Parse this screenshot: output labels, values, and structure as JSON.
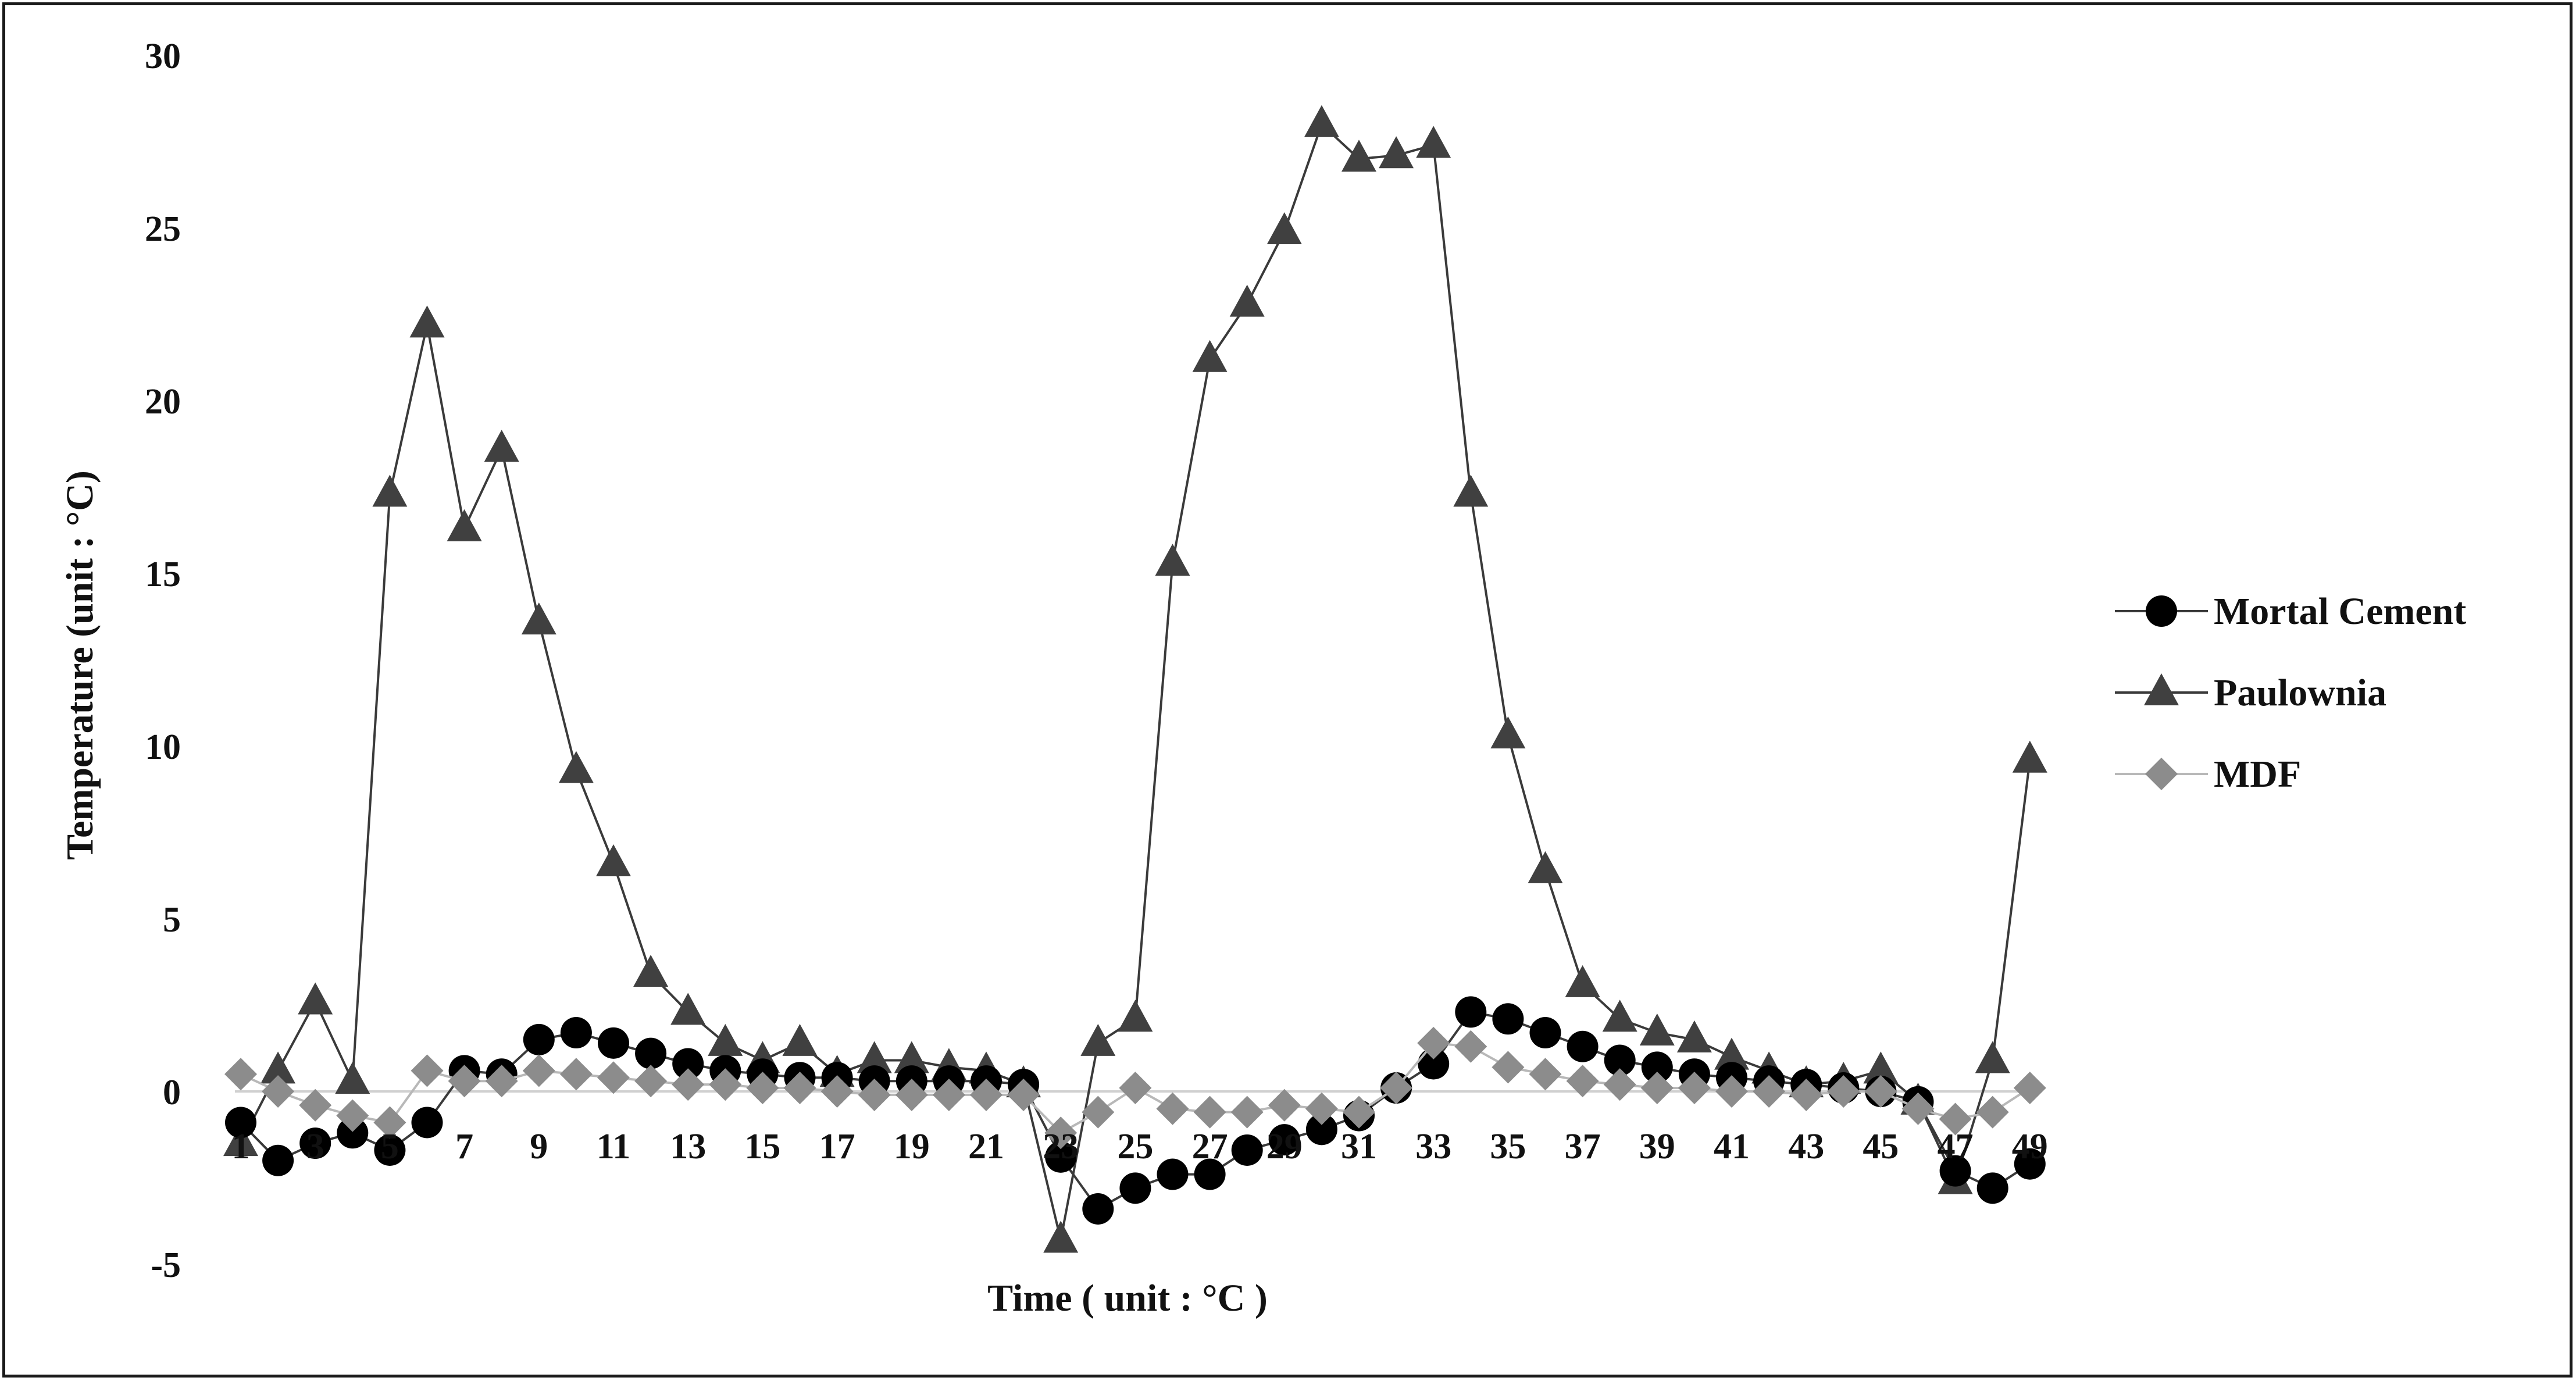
{
  "chart_data": {
    "type": "line",
    "title": "",
    "xlabel": "Time ( unit : °C )",
    "ylabel": "Temperature (unit : °C)",
    "ylim": [
      -5,
      30
    ],
    "y_ticks": [
      -5,
      0,
      5,
      10,
      15,
      20,
      25,
      30
    ],
    "x": [
      1,
      2,
      3,
      4,
      5,
      6,
      7,
      8,
      9,
      10,
      11,
      12,
      13,
      14,
      15,
      16,
      17,
      18,
      19,
      20,
      21,
      22,
      23,
      24,
      25,
      26,
      27,
      28,
      29,
      30,
      31,
      32,
      33,
      34,
      35,
      36,
      37,
      38,
      39,
      40,
      41,
      42,
      43,
      44,
      45,
      46,
      47,
      48,
      49
    ],
    "x_tick_labels": [
      "1",
      "3",
      "5",
      "7",
      "9",
      "11",
      "13",
      "15",
      "17",
      "19",
      "21",
      "23",
      "25",
      "27",
      "29",
      "31",
      "33",
      "35",
      "37",
      "39",
      "41",
      "43",
      "45",
      "47",
      "49"
    ],
    "x_tick_positions": [
      1,
      3,
      5,
      7,
      9,
      11,
      13,
      15,
      17,
      19,
      21,
      23,
      25,
      27,
      29,
      31,
      33,
      35,
      37,
      39,
      41,
      43,
      45,
      47,
      49
    ],
    "grid": false,
    "legend_position": "right",
    "series": [
      {
        "name": "Mortal Cement",
        "marker": "circle",
        "color": "#000000",
        "values": [
          -0.9,
          -2.0,
          -1.5,
          -1.2,
          -1.7,
          -0.9,
          0.6,
          0.5,
          1.5,
          1.7,
          1.4,
          1.1,
          0.8,
          0.6,
          0.5,
          0.4,
          0.4,
          0.3,
          0.3,
          0.3,
          0.3,
          0.2,
          -1.9,
          -3.4,
          -2.8,
          -2.4,
          -2.4,
          -1.7,
          -1.4,
          -1.1,
          -0.7,
          0.1,
          0.8,
          2.3,
          2.1,
          1.7,
          1.3,
          0.9,
          0.7,
          0.5,
          0.4,
          0.3,
          0.2,
          0.1,
          0.0,
          -0.3,
          -2.3,
          -2.8,
          -2.1
        ]
      },
      {
        "name": "Paulownia",
        "marker": "triangle",
        "color": "#404040",
        "values": [
          -1.5,
          0.6,
          2.6,
          0.3,
          17.3,
          22.2,
          16.3,
          18.6,
          13.6,
          9.3,
          6.6,
          3.4,
          2.3,
          1.4,
          0.9,
          1.4,
          0.5,
          0.9,
          0.9,
          0.7,
          0.6,
          0.2,
          -4.3,
          1.4,
          2.1,
          15.3,
          21.2,
          22.8,
          24.9,
          28.0,
          27.0,
          27.1,
          27.4,
          17.3,
          10.3,
          6.4,
          3.1,
          2.1,
          1.7,
          1.5,
          1.0,
          0.6,
          0.2,
          0.3,
          0.6,
          -0.3,
          -2.6,
          0.9,
          9.6
        ]
      },
      {
        "name": "MDF",
        "marker": "diamond",
        "color": "#8c8c8c",
        "values": [
          0.5,
          0.0,
          -0.4,
          -0.7,
          -0.9,
          0.6,
          0.3,
          0.3,
          0.6,
          0.5,
          0.4,
          0.3,
          0.2,
          0.2,
          0.1,
          0.1,
          0.0,
          -0.1,
          -0.1,
          -0.1,
          -0.1,
          -0.1,
          -1.2,
          -0.6,
          0.1,
          -0.5,
          -0.6,
          -0.6,
          -0.4,
          -0.5,
          -0.6,
          0.1,
          1.4,
          1.3,
          0.7,
          0.5,
          0.3,
          0.2,
          0.1,
          0.1,
          0.0,
          0.0,
          -0.1,
          0.0,
          0.0,
          -0.5,
          -0.8,
          -0.6,
          0.1
        ]
      }
    ]
  }
}
